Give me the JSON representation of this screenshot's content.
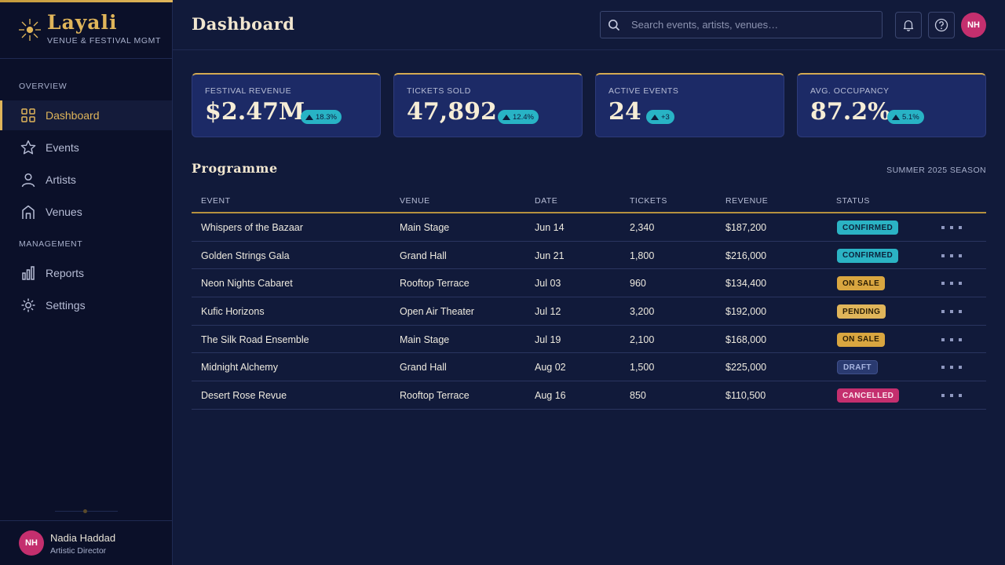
{
  "brand": {
    "title": "Layali",
    "subtitle": "VENUE & FESTIVAL MGMT"
  },
  "sidebar": {
    "sections": [
      {
        "label": "OVERVIEW",
        "items": [
          {
            "label": "Dashboard",
            "icon": "grid-icon",
            "active": true
          },
          {
            "label": "Events",
            "icon": "star-icon"
          },
          {
            "label": "Artists",
            "icon": "person-icon"
          },
          {
            "label": "Venues",
            "icon": "building-icon"
          }
        ]
      },
      {
        "label": "MANAGEMENT",
        "items": [
          {
            "label": "Reports",
            "icon": "bar-chart-icon"
          },
          {
            "label": "Settings",
            "icon": "gear-icon"
          }
        ]
      }
    ],
    "user": {
      "initials": "NH",
      "name": "Nadia Haddad",
      "role": "Artistic Director"
    }
  },
  "header": {
    "title": "Dashboard",
    "search_placeholder": "Search events, artists, venues…",
    "avatar_initials": "NH"
  },
  "kpis": [
    {
      "label": "FESTIVAL REVENUE",
      "value": "$2.47M",
      "change": "18.3%"
    },
    {
      "label": "TICKETS SOLD",
      "value": "47,892",
      "change": "12.4%"
    },
    {
      "label": "ACTIVE EVENTS",
      "value": "24",
      "change": "+3"
    },
    {
      "label": "AVG. OCCUPANCY",
      "value": "87.2%",
      "change": "5.1%"
    }
  ],
  "programme": {
    "title": "Programme",
    "season": "SUMMER 2025 SEASON",
    "columns": [
      "EVENT",
      "VENUE",
      "DATE",
      "TICKETS",
      "REVENUE",
      "STATUS"
    ],
    "rows": [
      {
        "event": "Whispers of the Bazaar",
        "venue": "Main Stage",
        "date": "Jun 14",
        "tickets": "2,340",
        "revenue": "$187,200",
        "status": "CONFIRMED",
        "status_type": "confirmed"
      },
      {
        "event": "Golden Strings Gala",
        "venue": "Grand Hall",
        "date": "Jun 21",
        "tickets": "1,800",
        "revenue": "$216,000",
        "status": "CONFIRMED",
        "status_type": "confirmed"
      },
      {
        "event": "Neon Nights Cabaret",
        "venue": "Rooftop Terrace",
        "date": "Jul 03",
        "tickets": "960",
        "revenue": "$134,400",
        "status": "ON SALE",
        "status_type": "sale"
      },
      {
        "event": "Kufic Horizons",
        "venue": "Open Air Theater",
        "date": "Jul 12",
        "tickets": "3,200",
        "revenue": "$192,000",
        "status": "PENDING",
        "status_type": "pending"
      },
      {
        "event": "The Silk Road Ensemble",
        "venue": "Main Stage",
        "date": "Jul 19",
        "tickets": "2,100",
        "revenue": "$168,000",
        "status": "ON SALE",
        "status_type": "sale"
      },
      {
        "event": "Midnight Alchemy",
        "venue": "Grand Hall",
        "date": "Aug 02",
        "tickets": "1,500",
        "revenue": "$225,000",
        "status": "DRAFT",
        "status_type": "draft"
      },
      {
        "event": "Desert Rose Revue",
        "venue": "Rooftop Terrace",
        "date": "Aug 16",
        "tickets": "850",
        "revenue": "$110,500",
        "status": "CANCELLED",
        "status_type": "cancelled"
      }
    ]
  },
  "colors": {
    "accent": "#e0b55a",
    "teal": "#2bb3c4",
    "magenta": "#c42f6e",
    "background": "#111a3a"
  }
}
